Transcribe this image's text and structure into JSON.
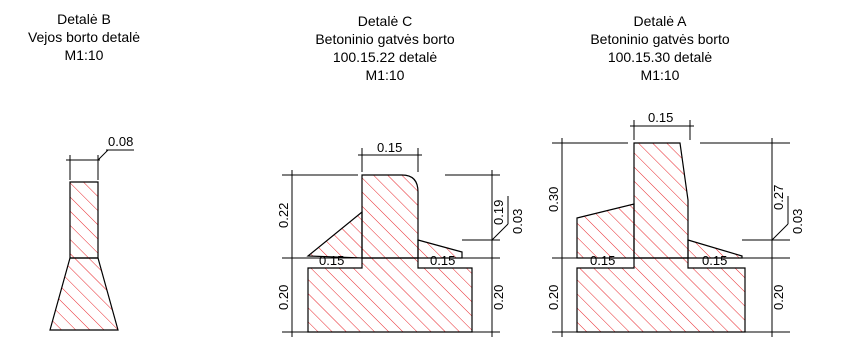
{
  "details": {
    "b": {
      "lines": [
        "Detalė B",
        "Vejos borto detalė",
        "M1:10"
      ],
      "dims": {
        "top_width": "0.08"
      }
    },
    "c": {
      "lines": [
        "Detalė C",
        "Betoninio gatvės borto",
        "100.15.22 detalė",
        "M1:10"
      ],
      "dims": {
        "top_width": "0.15",
        "base_left": "0.15",
        "base_right": "0.15",
        "height_upper": "0.22",
        "height_lower_left": "0.20",
        "height_lower_right": "0.20",
        "height_right": "0.19",
        "step": "0.03"
      }
    },
    "a": {
      "lines": [
        "Detalė A",
        "Betoninio gatvės borto",
        "100.15.30 detalė",
        "M1:10"
      ],
      "dims": {
        "top_width": "0.15",
        "base_left": "0.15",
        "base_right": "0.15",
        "height_upper": "0.30",
        "height_lower_left": "0.20",
        "height_lower_right": "0.20",
        "height_right": "0.27",
        "step": "0.03"
      }
    }
  },
  "colors": {
    "hatch": "#e8262b",
    "line": "#000000"
  }
}
